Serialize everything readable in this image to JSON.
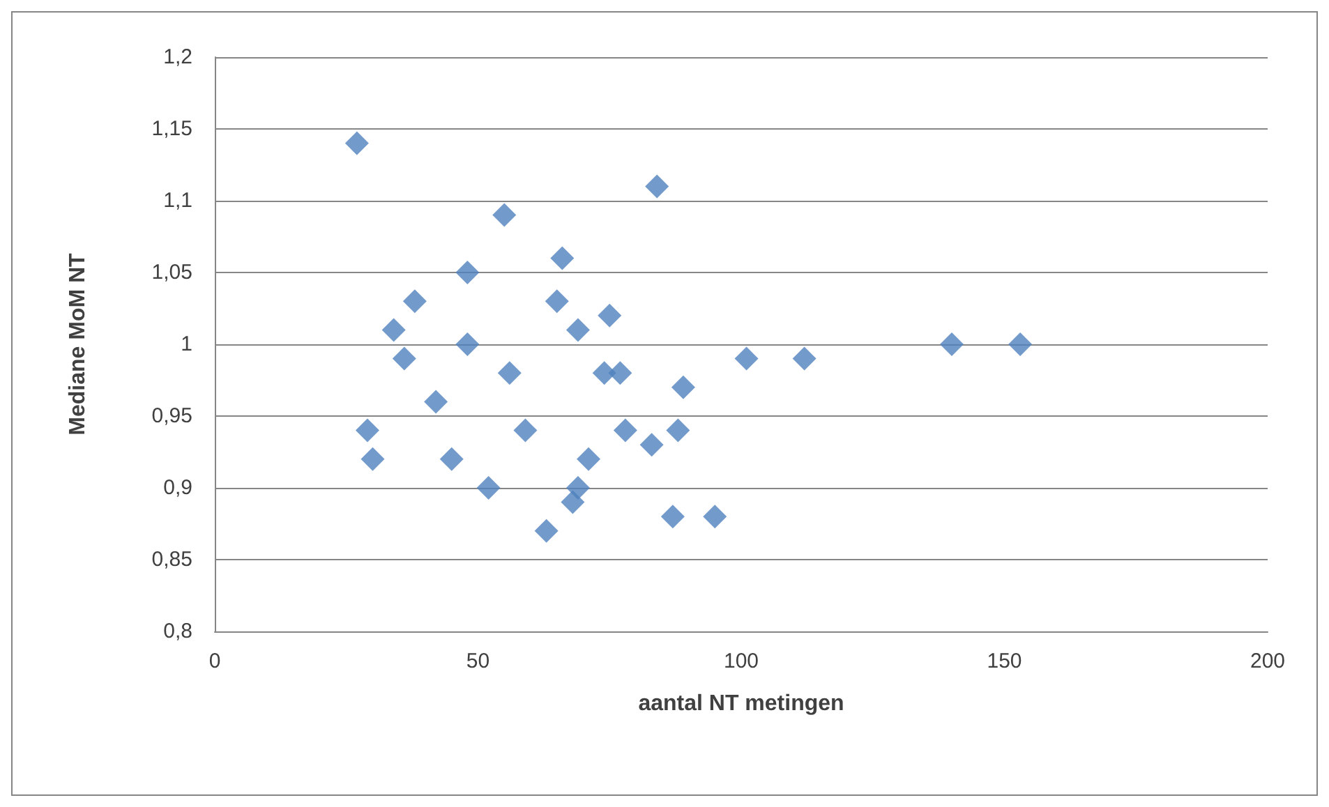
{
  "chart_data": {
    "type": "scatter",
    "xlabel": "aantal NT metingen",
    "ylabel": "Mediane MoM NT",
    "x": [
      27,
      29,
      30,
      34,
      36,
      38,
      42,
      45,
      48,
      48,
      52,
      55,
      56,
      59,
      63,
      65,
      66,
      68,
      69,
      69,
      71,
      74,
      75,
      77,
      78,
      83,
      84,
      87,
      88,
      89,
      95,
      101,
      112,
      140,
      153
    ],
    "series": [
      {
        "color": "#4f81bd",
        "values": [
          1.14,
          0.94,
          0.92,
          1.01,
          0.99,
          1.03,
          0.96,
          0.92,
          1.05,
          1.0,
          0.9,
          1.09,
          0.98,
          0.94,
          0.87,
          1.03,
          1.06,
          0.89,
          0.9,
          1.01,
          0.92,
          0.98,
          1.02,
          0.98,
          0.94,
          0.93,
          1.11,
          0.88,
          0.94,
          0.97,
          0.88,
          0.99,
          0.99,
          1.0,
          1.0
        ]
      }
    ],
    "xlim": [
      0,
      200
    ],
    "xticks": [
      0,
      50,
      100,
      150,
      200
    ],
    "ylim": [
      0.8,
      1.2
    ],
    "yticks": [
      {
        "value": 0.8,
        "label": "0,8"
      },
      {
        "value": 0.85,
        "label": "0,85"
      },
      {
        "value": 0.9,
        "label": "0,9"
      },
      {
        "value": 0.95,
        "label": "0,95"
      },
      1,
      {
        "value": 1.05,
        "label": "1,05"
      },
      {
        "value": 1.1,
        "label": "1,1"
      },
      {
        "value": 1.15,
        "label": "1,15"
      },
      {
        "value": 1.2,
        "label": "1,2"
      }
    ],
    "grid": "y",
    "marker": "diamond"
  }
}
